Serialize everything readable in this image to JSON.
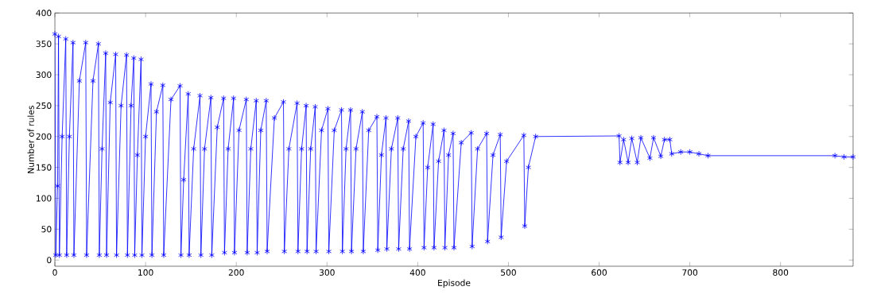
{
  "chart_data": {
    "type": "line",
    "xlabel": "Episode",
    "ylabel": "Number of rules",
    "xlim": [
      0,
      880
    ],
    "ylim": [
      -10,
      400
    ],
    "xticks": [
      0,
      100,
      200,
      300,
      400,
      500,
      600,
      700,
      800
    ],
    "yticks": [
      0,
      50,
      100,
      150,
      200,
      250,
      300,
      350,
      400
    ],
    "grid": false,
    "marker": "cross",
    "line_style": "solid",
    "series": [
      {
        "color": "#0000ff",
        "x": [
          0,
          1,
          3,
          4,
          5,
          8,
          12,
          13,
          16,
          20,
          21,
          27,
          34,
          35,
          42,
          48,
          49,
          52,
          56,
          57,
          61,
          67,
          68,
          73,
          79,
          80,
          84,
          87,
          88,
          91,
          95,
          96,
          100,
          106,
          107,
          112,
          119,
          120,
          128,
          138,
          139,
          142,
          147,
          148,
          153,
          160,
          161,
          165,
          172,
          173,
          179,
          186,
          187,
          191,
          197,
          198,
          203,
          211,
          212,
          216,
          222,
          223,
          227,
          233,
          234,
          242,
          252,
          253,
          258,
          267,
          268,
          272,
          277,
          278,
          282,
          287,
          288,
          294,
          301,
          302,
          308,
          316,
          317,
          321,
          326,
          327,
          332,
          339,
          340,
          346,
          355,
          356,
          360,
          365,
          366,
          371,
          378,
          379,
          384,
          390,
          391,
          398,
          406,
          407,
          411,
          417,
          418,
          423,
          429,
          430,
          434,
          439,
          440,
          448,
          459,
          460,
          466,
          476,
          477,
          483,
          491,
          492,
          498,
          517,
          518,
          522,
          530,
          622,
          623,
          627,
          632,
          636,
          642,
          646,
          656,
          660,
          668,
          672,
          678,
          680,
          690,
          700,
          710,
          720,
          860,
          870,
          880
        ],
        "values": [
          366,
          8,
          120,
          362,
          8,
          200,
          358,
          8,
          200,
          352,
          8,
          290,
          352,
          8,
          290,
          350,
          8,
          180,
          335,
          8,
          255,
          333,
          8,
          250,
          332,
          8,
          250,
          327,
          8,
          170,
          325,
          8,
          200,
          285,
          8,
          240,
          283,
          8,
          260,
          282,
          8,
          130,
          269,
          8,
          180,
          266,
          8,
          180,
          263,
          8,
          215,
          262,
          12,
          180,
          262,
          12,
          210,
          260,
          12,
          180,
          258,
          12,
          210,
          258,
          14,
          230,
          256,
          14,
          180,
          254,
          14,
          180,
          250,
          14,
          180,
          248,
          14,
          210,
          245,
          14,
          210,
          243,
          14,
          180,
          243,
          14,
          180,
          240,
          14,
          210,
          232,
          16,
          170,
          230,
          18,
          180,
          230,
          18,
          180,
          225,
          18,
          200,
          222,
          20,
          150,
          220,
          20,
          160,
          210,
          20,
          170,
          205,
          20,
          190,
          206,
          22,
          180,
          205,
          30,
          170,
          203,
          37,
          160,
          202,
          55,
          150,
          200,
          201,
          158,
          195,
          158,
          197,
          158,
          198,
          165,
          198,
          168,
          195,
          195,
          172,
          175,
          175,
          172,
          169,
          169,
          167,
          167
        ]
      }
    ]
  }
}
